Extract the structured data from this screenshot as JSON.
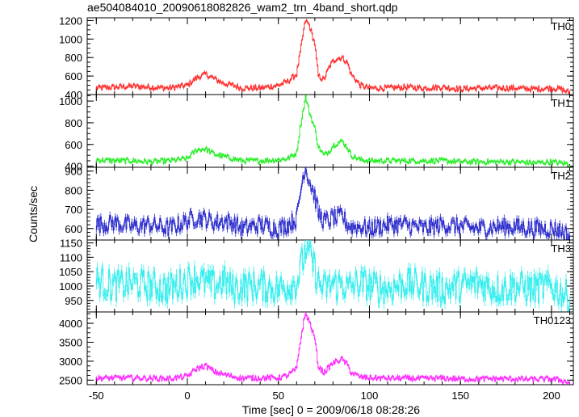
{
  "chart_data": {
    "type": "line",
    "title": "ae504084010_20090618082826_wam2_trn_4band_short.qdp",
    "xlabel": "Time [sec] 0 = 2009/06/18 08:28:26",
    "ylabel": "Counts/sec",
    "xlim": [
      -55,
      212
    ],
    "x_ticks": [
      -50,
      0,
      50,
      100,
      150,
      200
    ],
    "error_bars": true,
    "panels": [
      {
        "name": "TH0",
        "color": "#ff2a2a",
        "ylim": [
          400,
          1230
        ],
        "y_ticks": [
          400,
          600,
          800,
          1000,
          1200
        ],
        "x": [
          -50,
          -40,
          -30,
          -20,
          -10,
          0,
          5,
          10,
          15,
          20,
          25,
          30,
          40,
          50,
          55,
          60,
          62,
          64,
          65,
          67,
          70,
          72,
          75,
          78,
          80,
          82,
          85,
          88,
          90,
          95,
          100,
          110,
          120,
          130,
          140,
          150,
          160,
          170,
          180,
          190,
          200,
          205,
          210
        ],
        "values": [
          470,
          480,
          490,
          480,
          470,
          500,
          580,
          620,
          570,
          520,
          500,
          470,
          470,
          500,
          540,
          620,
          850,
          1100,
          1200,
          1150,
          950,
          600,
          560,
          700,
          760,
          790,
          800,
          740,
          620,
          500,
          470,
          470,
          480,
          470,
          480,
          460,
          470,
          470,
          470,
          460,
          470,
          460,
          420
        ]
      },
      {
        "name": "TH1",
        "color": "#22ee22",
        "ylim": [
          390,
          1060
        ],
        "y_ticks": [
          400,
          600,
          800,
          1000
        ],
        "x": [
          -50,
          -40,
          -30,
          -20,
          -10,
          0,
          5,
          10,
          15,
          20,
          25,
          30,
          40,
          50,
          55,
          60,
          62,
          64,
          65,
          67,
          70,
          72,
          75,
          78,
          80,
          82,
          85,
          88,
          90,
          95,
          100,
          110,
          120,
          130,
          140,
          150,
          160,
          170,
          180,
          190,
          200,
          205,
          210
        ],
        "values": [
          460,
          450,
          450,
          440,
          450,
          470,
          550,
          560,
          510,
          490,
          470,
          450,
          450,
          460,
          470,
          520,
          750,
          950,
          1040,
          900,
          750,
          580,
          500,
          540,
          590,
          610,
          630,
          570,
          500,
          460,
          450,
          450,
          450,
          450,
          450,
          440,
          440,
          440,
          440,
          430,
          440,
          430,
          420
        ]
      },
      {
        "name": "TH2",
        "color": "#2a2acc",
        "ylim": [
          540,
          920
        ],
        "y_ticks": [
          600,
          700,
          800,
          900
        ],
        "x": [
          -50,
          -40,
          -30,
          -20,
          -10,
          0,
          5,
          10,
          15,
          20,
          25,
          30,
          40,
          50,
          55,
          60,
          62,
          64,
          65,
          67,
          70,
          72,
          75,
          78,
          80,
          82,
          85,
          88,
          90,
          95,
          100,
          110,
          120,
          130,
          140,
          150,
          160,
          170,
          180,
          190,
          200,
          205,
          210
        ],
        "values": [
          620,
          630,
          610,
          620,
          600,
          640,
          660,
          650,
          630,
          640,
          630,
          600,
          620,
          600,
          620,
          650,
          780,
          900,
          920,
          850,
          770,
          680,
          640,
          640,
          660,
          650,
          670,
          620,
          610,
          610,
          600,
          620,
          620,
          600,
          620,
          610,
          600,
          610,
          610,
          600,
          600,
          590,
          560
        ]
      },
      {
        "name": "TH3",
        "color": "#33eeee",
        "ylim": [
          910,
          1160
        ],
        "y_ticks": [
          950,
          1000,
          1050,
          1100,
          1150
        ],
        "x": [
          -50,
          -40,
          -30,
          -20,
          -10,
          0,
          5,
          10,
          15,
          20,
          25,
          30,
          40,
          50,
          55,
          60,
          62,
          64,
          65,
          67,
          70,
          72,
          75,
          78,
          80,
          82,
          85,
          88,
          90,
          95,
          100,
          110,
          120,
          130,
          140,
          150,
          160,
          170,
          180,
          190,
          200,
          205,
          210
        ],
        "values": [
          1020,
          1000,
          1010,
          1000,
          990,
          1020,
          1030,
          1010,
          1000,
          1020,
          990,
          1000,
          1000,
          990,
          1000,
          1010,
          1060,
          1100,
          1130,
          1110,
          1060,
          1010,
          990,
          1000,
          1010,
          1000,
          1010,
          990,
          1000,
          1010,
          1000,
          990,
          1010,
          1000,
          990,
          1000,
          1010,
          990,
          1000,
          990,
          1000,
          980,
          960
        ]
      },
      {
        "name": "TH0123",
        "color": "#ff22ff",
        "ylim": [
          2380,
          4300
        ],
        "y_ticks": [
          2500,
          3000,
          3500,
          4000
        ],
        "x": [
          -50,
          -40,
          -30,
          -20,
          -10,
          0,
          5,
          10,
          15,
          20,
          25,
          30,
          40,
          50,
          55,
          60,
          62,
          64,
          65,
          67,
          70,
          72,
          75,
          78,
          80,
          82,
          85,
          88,
          90,
          95,
          100,
          110,
          120,
          130,
          140,
          150,
          160,
          170,
          180,
          190,
          200,
          205,
          210
        ],
        "values": [
          2550,
          2560,
          2560,
          2550,
          2540,
          2600,
          2800,
          2880,
          2720,
          2650,
          2600,
          2550,
          2560,
          2560,
          2620,
          2800,
          3500,
          4050,
          4250,
          4050,
          3600,
          2850,
          2700,
          2850,
          2950,
          3000,
          3050,
          2900,
          2700,
          2580,
          2560,
          2550,
          2550,
          2540,
          2550,
          2530,
          2530,
          2540,
          2530,
          2520,
          2530,
          2500,
          2430
        ]
      }
    ]
  }
}
